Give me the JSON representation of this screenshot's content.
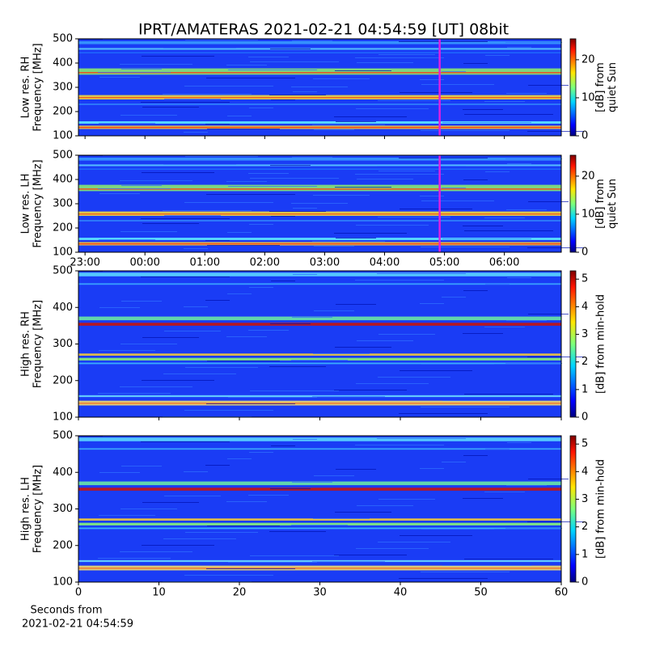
{
  "title": "IPRT/AMATERAS 2021-02-21 04:54:59 [UT]   08bit",
  "chart_data": [
    {
      "type": "heatmap",
      "ylabel": [
        "Low res. RH",
        "Frequency [MHz]"
      ],
      "ylim": [
        100,
        500
      ],
      "yticks": [
        100,
        200,
        300,
        400,
        500
      ],
      "xlim": [
        22.89,
        30.95
      ],
      "xticks": [
        23,
        24,
        25,
        26,
        27,
        28,
        29,
        30
      ],
      "marker_x": 28.92,
      "marker_color": "#e020e0",
      "colorbar_label": [
        "[dB] from",
        "quiet Sun"
      ],
      "clim": [
        0,
        25.5
      ],
      "cticks": [
        0,
        10,
        20
      ]
    },
    {
      "type": "heatmap",
      "ylabel": [
        "Low res. LH",
        "Frequency [MHz]"
      ],
      "ylim": [
        100,
        500
      ],
      "yticks": [
        100,
        200,
        300,
        400,
        500
      ],
      "xlim": [
        22.89,
        30.95
      ],
      "xticks": [
        {
          "value": 23,
          "label": "23:00"
        },
        {
          "value": 24,
          "label": "00:00"
        },
        {
          "value": 25,
          "label": "01:00"
        },
        {
          "value": 26,
          "label": "02:00"
        },
        {
          "value": 27,
          "label": "03:00"
        },
        {
          "value": 28,
          "label": "04:00"
        },
        {
          "value": 29,
          "label": "05:00"
        },
        {
          "value": 30,
          "label": "06:00"
        }
      ],
      "marker_x": 28.92,
      "marker_color": "#e020e0",
      "colorbar_label": [
        "[dB] from",
        "quiet Sun"
      ],
      "clim": [
        0,
        25.5
      ],
      "cticks": [
        0,
        10,
        20
      ]
    },
    {
      "type": "heatmap",
      "ylabel": [
        "High res. RH",
        "Frequency [MHz]"
      ],
      "ylim": [
        100,
        500
      ],
      "yticks": [
        100,
        200,
        300,
        400,
        500
      ],
      "xlim": [
        0,
        60
      ],
      "xticks": [
        0,
        10,
        20,
        30,
        40,
        50,
        60
      ],
      "colorbar_label": [
        "[dB] from min-hold"
      ],
      "clim": [
        0,
        5.3
      ],
      "cticks": [
        0,
        1,
        2,
        3,
        4,
        5
      ]
    },
    {
      "type": "heatmap",
      "ylabel": [
        "High res. LH",
        "Frequency [MHz]"
      ],
      "ylim": [
        100,
        500
      ],
      "yticks": [
        100,
        200,
        300,
        400,
        500
      ],
      "xlim": [
        0,
        60
      ],
      "xticks": [
        0,
        10,
        20,
        30,
        40,
        50,
        60
      ],
      "xtick_labels": true,
      "xlabel": [
        "Seconds from",
        "2021-02-21 04:54:59"
      ],
      "colorbar_label": [
        "[dB] from min-hold"
      ],
      "clim": [
        0,
        5.3
      ],
      "cticks": [
        0,
        1,
        2,
        3,
        4,
        5
      ]
    }
  ]
}
